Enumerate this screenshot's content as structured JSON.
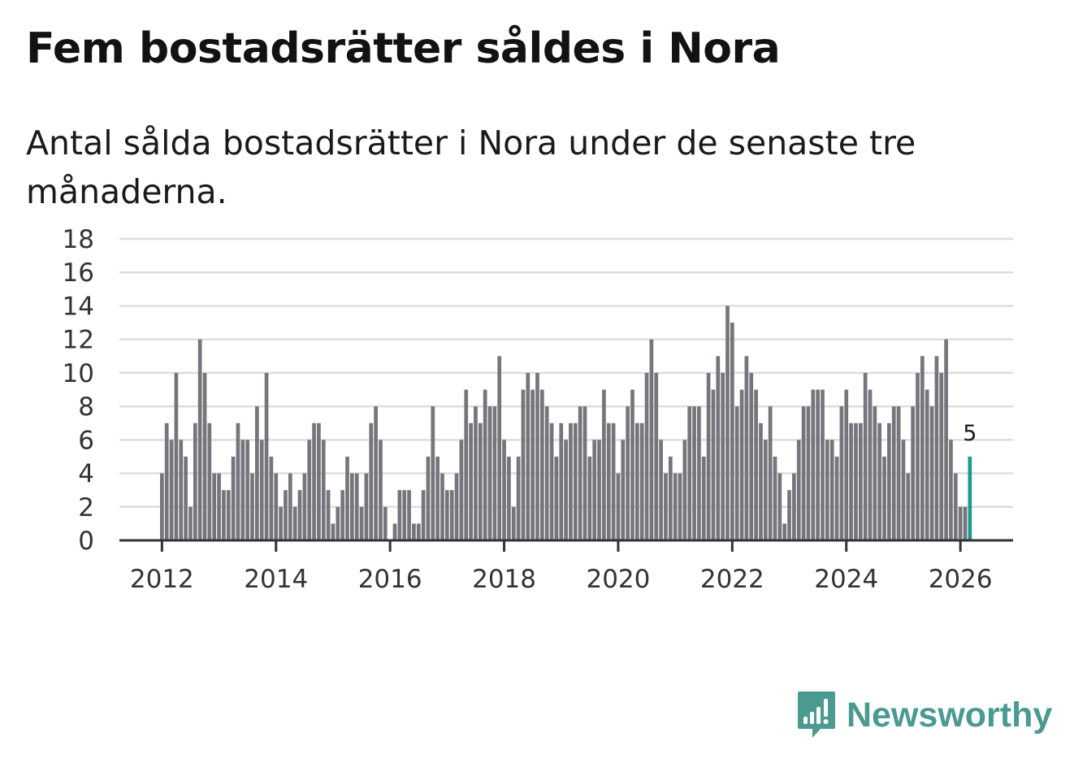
{
  "title": "Fem bostadsrätter såldes i Nora",
  "subtitle": "Antal sålda bostadsrätter i Nora under de senaste tre månaderna.",
  "brand": {
    "name": "Newsworthy",
    "icon": "chart-bubble-icon"
  },
  "colors": {
    "bar": "#75757b",
    "highlight": "#1a9b8d",
    "brand": "#4a9a92"
  },
  "chart_data": {
    "type": "bar",
    "title": "Fem bostadsrätter såldes i Nora",
    "xlabel": "",
    "ylabel": "",
    "ylim": [
      0,
      18
    ],
    "yticks": [
      "0",
      "2",
      "4",
      "6",
      "8",
      "10",
      "12",
      "14",
      "16",
      "18"
    ],
    "xticks": [
      "2012",
      "2014",
      "2016",
      "2018",
      "2020",
      "2022",
      "2024",
      "2026"
    ],
    "start": "2012-01",
    "end": "2026-03",
    "highlight": {
      "index": 170,
      "label": "5"
    },
    "values": [
      4,
      7,
      6,
      10,
      6,
      5,
      2,
      7,
      12,
      10,
      7,
      4,
      4,
      3,
      3,
      5,
      7,
      6,
      6,
      4,
      8,
      6,
      10,
      5,
      4,
      2,
      3,
      4,
      2,
      3,
      4,
      6,
      7,
      7,
      6,
      3,
      1,
      2,
      3,
      5,
      4,
      4,
      2,
      4,
      7,
      8,
      6,
      2,
      0,
      1,
      3,
      3,
      3,
      1,
      1,
      3,
      5,
      8,
      5,
      4,
      3,
      3,
      4,
      6,
      9,
      7,
      8,
      7,
      9,
      8,
      8,
      11,
      6,
      5,
      2,
      5,
      9,
      10,
      9,
      10,
      9,
      8,
      7,
      5,
      7,
      6,
      7,
      7,
      8,
      8,
      5,
      6,
      6,
      9,
      7,
      7,
      4,
      6,
      8,
      9,
      7,
      7,
      10,
      12,
      10,
      6,
      4,
      5,
      4,
      4,
      6,
      8,
      8,
      8,
      5,
      10,
      9,
      11,
      10,
      14,
      13,
      8,
      9,
      11,
      10,
      9,
      7,
      6,
      8,
      5,
      4,
      1,
      3,
      4,
      6,
      8,
      8,
      9,
      9,
      9,
      6,
      6,
      5,
      8,
      9,
      7,
      7,
      7,
      10,
      9,
      8,
      7,
      5,
      7,
      8,
      8,
      6,
      4,
      8,
      10,
      11,
      9,
      8,
      11,
      10,
      12,
      6,
      4,
      2,
      2,
      5
    ]
  }
}
